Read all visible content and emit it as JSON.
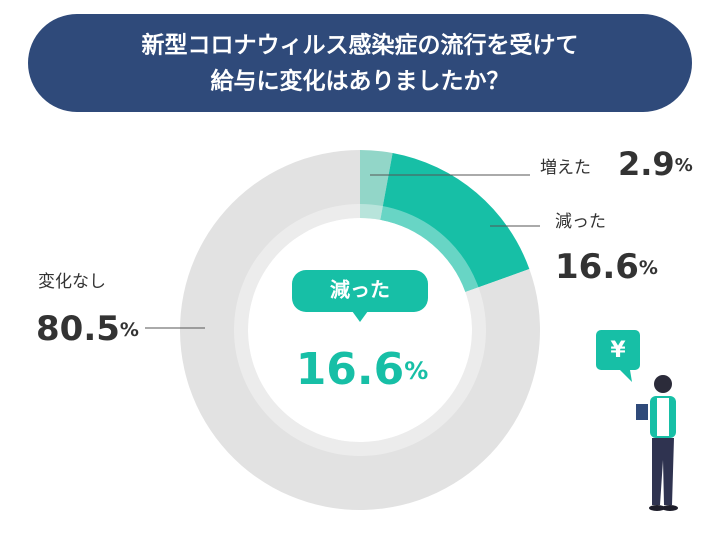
{
  "chart_data": {
    "type": "donut",
    "title": [
      "新型コロナウィルス感染症の流行を受けて",
      "給与に変化はありましたか？"
    ],
    "categories": [
      "増えた",
      "減った",
      "変化なし"
    ],
    "values": [
      2.9,
      16.6,
      80.5
    ],
    "colors": [
      "#92d6c8",
      "#17bfa6",
      "#e2e2e2"
    ],
    "unit": "%",
    "highlight": 1
  }
}
